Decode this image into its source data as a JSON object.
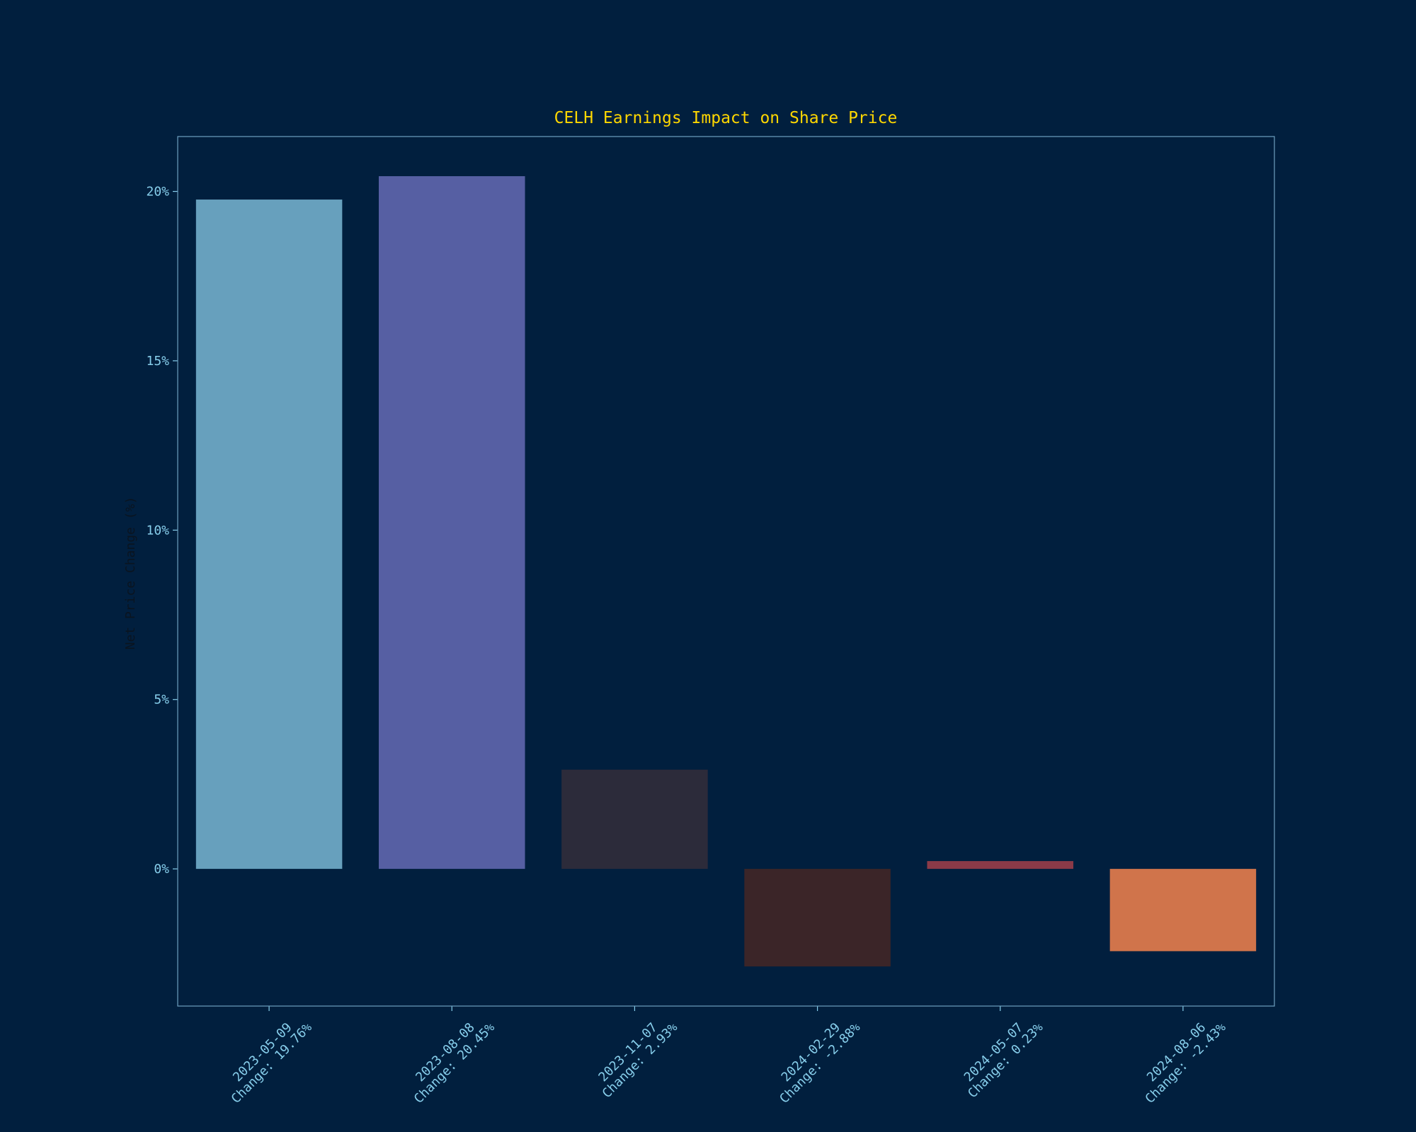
{
  "chart_data": {
    "type": "bar",
    "title": "CELH Earnings Impact on Share Price",
    "y_label": "Net Price Change (%)",
    "categories": [
      "2023-05-09",
      "2023-08-08",
      "2023-11-07",
      "2024-02-29",
      "2024-05-07",
      "2024-08-06"
    ],
    "values": [
      19.76,
      20.45,
      2.93,
      -2.88,
      0.23,
      -2.43
    ],
    "value_labels": [
      "Change: 19.76%",
      "Change: 20.45%",
      "Change: 2.93%",
      "Change: -2.88%",
      "Change: 0.23%",
      "Change: -2.43%"
    ],
    "colors": [
      "#67a0bd",
      "#565fa3",
      "#2c2b3a",
      "#3b2528",
      "#8b3a48",
      "#d0744b"
    ],
    "ylim": [
      -4.05,
      21.62
    ],
    "yticks": [
      {
        "value": 0,
        "label": "0%"
      },
      {
        "value": 5,
        "label": "5%"
      },
      {
        "value": 10,
        "label": "10%"
      },
      {
        "value": 15,
        "label": "15%"
      },
      {
        "value": 20,
        "label": "20%"
      }
    ],
    "grid": false
  }
}
